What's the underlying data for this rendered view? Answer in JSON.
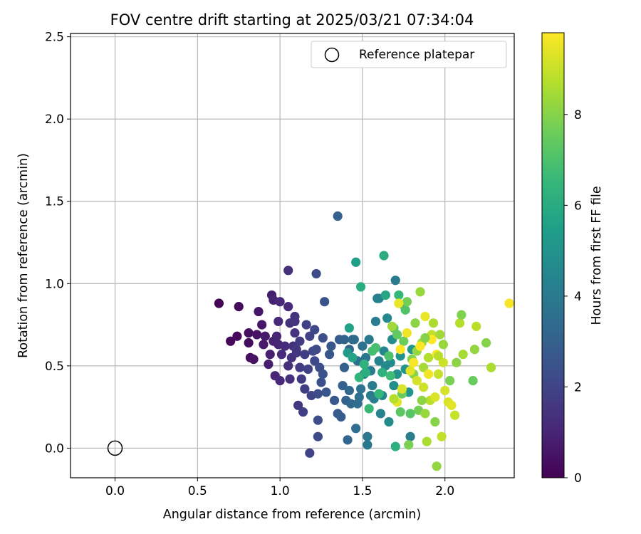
{
  "chart_data": {
    "type": "scatter",
    "title": "FOV centre drift starting at 2025/03/21 07:34:04",
    "xlabel": "Angular distance from reference (arcmin)",
    "ylabel": "Rotation from reference (arcmin)",
    "xlim": [
      -0.27,
      2.42
    ],
    "ylim": [
      -0.18,
      2.52
    ],
    "x_ticks": [
      "0.0",
      "0.5",
      "1.0",
      "1.5",
      "2.0"
    ],
    "x_tick_values": [
      0,
      0.5,
      1.0,
      1.5,
      2.0
    ],
    "y_ticks": [
      "0.0",
      "0.5",
      "1.0",
      "1.5",
      "2.0",
      "2.5"
    ],
    "y_tick_values": [
      0,
      0.5,
      1.0,
      1.5,
      2.0,
      2.5
    ],
    "grid": true,
    "legend": {
      "position": "upper-right",
      "entries": [
        {
          "label": "Reference platepar",
          "marker": "open-circle"
        }
      ]
    },
    "reference": {
      "x": 0.0,
      "y": 0.0
    },
    "colorbar": {
      "label": "Hours from first FF file",
      "min": 0,
      "max": 9.8,
      "ticks": [
        "0",
        "2",
        "4",
        "6",
        "8"
      ],
      "tick_values": [
        0,
        2,
        4,
        6,
        8
      ],
      "colormap": "viridis"
    },
    "points": [
      {
        "x": 0.63,
        "y": 0.88,
        "c": 0.1
      },
      {
        "x": 0.7,
        "y": 0.65,
        "c": 0.2
      },
      {
        "x": 0.74,
        "y": 0.68,
        "c": 0.2
      },
      {
        "x": 0.75,
        "y": 0.86,
        "c": 0.3
      },
      {
        "x": 0.81,
        "y": 0.64,
        "c": 0.3
      },
      {
        "x": 0.81,
        "y": 0.7,
        "c": 0.4
      },
      {
        "x": 0.82,
        "y": 0.55,
        "c": 0.4
      },
      {
        "x": 0.84,
        "y": 0.54,
        "c": 0.5
      },
      {
        "x": 0.86,
        "y": 0.69,
        "c": 0.5
      },
      {
        "x": 0.87,
        "y": 0.83,
        "c": 0.6
      },
      {
        "x": 0.89,
        "y": 0.75,
        "c": 0.6
      },
      {
        "x": 0.9,
        "y": 0.63,
        "c": 0.7
      },
      {
        "x": 0.91,
        "y": 0.68,
        "c": 0.7
      },
      {
        "x": 0.93,
        "y": 0.51,
        "c": 0.8
      },
      {
        "x": 0.94,
        "y": 0.57,
        "c": 0.8
      },
      {
        "x": 0.95,
        "y": 0.93,
        "c": 0.8
      },
      {
        "x": 0.96,
        "y": 0.9,
        "c": 0.9
      },
      {
        "x": 0.96,
        "y": 0.65,
        "c": 0.9
      },
      {
        "x": 0.97,
        "y": 0.44,
        "c": 1.0
      },
      {
        "x": 0.98,
        "y": 0.68,
        "c": 1.0
      },
      {
        "x": 0.99,
        "y": 0.63,
        "c": 1.0
      },
      {
        "x": 0.99,
        "y": 0.77,
        "c": 1.1
      },
      {
        "x": 1.0,
        "y": 0.41,
        "c": 1.1
      },
      {
        "x": 1.0,
        "y": 0.89,
        "c": 1.1
      },
      {
        "x": 1.01,
        "y": 0.57,
        "c": 1.2
      },
      {
        "x": 1.03,
        "y": 0.62,
        "c": 1.2
      },
      {
        "x": 1.05,
        "y": 0.86,
        "c": 1.2
      },
      {
        "x": 1.05,
        "y": 1.08,
        "c": 1.3
      },
      {
        "x": 1.05,
        "y": 0.5,
        "c": 1.3
      },
      {
        "x": 1.06,
        "y": 0.42,
        "c": 1.3
      },
      {
        "x": 1.06,
        "y": 0.76,
        "c": 1.4
      },
      {
        "x": 1.07,
        "y": 0.55,
        "c": 1.4
      },
      {
        "x": 1.08,
        "y": 0.62,
        "c": 1.4
      },
      {
        "x": 1.09,
        "y": 0.8,
        "c": 1.5
      },
      {
        "x": 1.09,
        "y": 0.7,
        "c": 1.5
      },
      {
        "x": 1.09,
        "y": 0.77,
        "c": 1.5
      },
      {
        "x": 1.1,
        "y": 0.58,
        "c": 1.6
      },
      {
        "x": 1.1,
        "y": 0.6,
        "c": 1.6
      },
      {
        "x": 1.11,
        "y": 0.26,
        "c": 1.6
      },
      {
        "x": 1.12,
        "y": 0.49,
        "c": 1.7
      },
      {
        "x": 1.12,
        "y": 0.65,
        "c": 1.7
      },
      {
        "x": 1.13,
        "y": 0.42,
        "c": 1.7
      },
      {
        "x": 1.14,
        "y": 0.22,
        "c": 1.8
      },
      {
        "x": 1.15,
        "y": 0.57,
        "c": 1.8
      },
      {
        "x": 1.15,
        "y": 0.36,
        "c": 1.8
      },
      {
        "x": 1.16,
        "y": 0.75,
        "c": 1.9
      },
      {
        "x": 1.17,
        "y": 0.48,
        "c": 1.9
      },
      {
        "x": 1.18,
        "y": 0.68,
        "c": 2.0
      },
      {
        "x": 1.18,
        "y": -0.03,
        "c": 2.0
      },
      {
        "x": 1.19,
        "y": 0.32,
        "c": 2.0
      },
      {
        "x": 1.2,
        "y": 0.59,
        "c": 2.1
      },
      {
        "x": 1.21,
        "y": 0.53,
        "c": 2.1
      },
      {
        "x": 1.21,
        "y": 0.72,
        "c": 2.1
      },
      {
        "x": 1.22,
        "y": 0.6,
        "c": 2.2
      },
      {
        "x": 1.22,
        "y": 1.06,
        "c": 2.2
      },
      {
        "x": 1.23,
        "y": 0.07,
        "c": 2.2
      },
      {
        "x": 1.23,
        "y": 0.17,
        "c": 2.3
      },
      {
        "x": 1.23,
        "y": 0.33,
        "c": 2.3
      },
      {
        "x": 1.24,
        "y": 0.49,
        "c": 2.3
      },
      {
        "x": 1.25,
        "y": 0.4,
        "c": 2.4
      },
      {
        "x": 1.26,
        "y": 0.67,
        "c": 2.4
      },
      {
        "x": 1.26,
        "y": 0.45,
        "c": 2.5
      },
      {
        "x": 1.27,
        "y": 0.89,
        "c": 2.5
      },
      {
        "x": 1.28,
        "y": 0.34,
        "c": 2.6
      },
      {
        "x": 1.3,
        "y": 0.57,
        "c": 2.6
      },
      {
        "x": 1.31,
        "y": 0.62,
        "c": 2.7
      },
      {
        "x": 1.33,
        "y": 0.29,
        "c": 2.7
      },
      {
        "x": 1.35,
        "y": 1.41,
        "c": 3.0
      },
      {
        "x": 1.35,
        "y": 0.21,
        "c": 2.8
      },
      {
        "x": 1.36,
        "y": 0.66,
        "c": 2.9
      },
      {
        "x": 1.37,
        "y": 0.19,
        "c": 2.9
      },
      {
        "x": 1.38,
        "y": 0.38,
        "c": 3.0
      },
      {
        "x": 1.39,
        "y": 0.49,
        "c": 3.0
      },
      {
        "x": 1.39,
        "y": 0.66,
        "c": 3.1
      },
      {
        "x": 1.4,
        "y": 0.29,
        "c": 3.1
      },
      {
        "x": 1.41,
        "y": 0.05,
        "c": 3.2
      },
      {
        "x": 1.42,
        "y": 0.6,
        "c": 3.2
      },
      {
        "x": 1.42,
        "y": 0.35,
        "c": 3.3
      },
      {
        "x": 1.43,
        "y": 0.27,
        "c": 3.3
      },
      {
        "x": 1.44,
        "y": 0.66,
        "c": 3.4
      },
      {
        "x": 1.45,
        "y": 0.66,
        "c": 3.4
      },
      {
        "x": 1.46,
        "y": 0.12,
        "c": 3.5
      },
      {
        "x": 1.47,
        "y": 0.27,
        "c": 3.5
      },
      {
        "x": 1.47,
        "y": 0.53,
        "c": 3.6
      },
      {
        "x": 1.48,
        "y": 0.31,
        "c": 3.6
      },
      {
        "x": 1.49,
        "y": 0.36,
        "c": 3.7
      },
      {
        "x": 1.5,
        "y": 0.62,
        "c": 3.7
      },
      {
        "x": 1.51,
        "y": 0.45,
        "c": 3.8
      },
      {
        "x": 1.52,
        "y": 0.55,
        "c": 3.8
      },
      {
        "x": 1.53,
        "y": 0.07,
        "c": 3.9
      },
      {
        "x": 1.53,
        "y": 0.02,
        "c": 3.9
      },
      {
        "x": 1.54,
        "y": 0.66,
        "c": 4.0
      },
      {
        "x": 1.55,
        "y": 0.32,
        "c": 4.0
      },
      {
        "x": 1.55,
        "y": 0.47,
        "c": 4.1
      },
      {
        "x": 1.56,
        "y": 0.38,
        "c": 4.1
      },
      {
        "x": 1.57,
        "y": 0.3,
        "c": 4.2
      },
      {
        "x": 1.58,
        "y": 0.77,
        "c": 4.2
      },
      {
        "x": 1.59,
        "y": 0.91,
        "c": 4.3
      },
      {
        "x": 1.6,
        "y": 0.91,
        "c": 4.3
      },
      {
        "x": 1.6,
        "y": 0.53,
        "c": 4.4
      },
      {
        "x": 1.61,
        "y": 0.21,
        "c": 4.4
      },
      {
        "x": 1.62,
        "y": 0.32,
        "c": 4.5
      },
      {
        "x": 1.63,
        "y": 0.59,
        "c": 4.5
      },
      {
        "x": 1.64,
        "y": 0.5,
        "c": 4.6
      },
      {
        "x": 1.65,
        "y": 0.79,
        "c": 4.6
      },
      {
        "x": 1.66,
        "y": 0.16,
        "c": 4.7
      },
      {
        "x": 1.67,
        "y": 0.52,
        "c": 4.7
      },
      {
        "x": 1.68,
        "y": 0.66,
        "c": 4.8
      },
      {
        "x": 1.69,
        "y": 0.38,
        "c": 4.8
      },
      {
        "x": 1.7,
        "y": 1.02,
        "c": 4.0
      },
      {
        "x": 1.71,
        "y": 0.45,
        "c": 4.9
      },
      {
        "x": 1.73,
        "y": 0.56,
        "c": 5.0
      },
      {
        "x": 1.75,
        "y": 0.87,
        "c": 5.0
      },
      {
        "x": 1.76,
        "y": 0.48,
        "c": 5.1
      },
      {
        "x": 1.78,
        "y": 0.34,
        "c": 5.1
      },
      {
        "x": 1.79,
        "y": 0.07,
        "c": 4.2
      },
      {
        "x": 1.8,
        "y": 0.6,
        "c": 5.2
      },
      {
        "x": 1.41,
        "y": 0.58,
        "c": 5.3
      },
      {
        "x": 1.42,
        "y": 0.73,
        "c": 5.6
      },
      {
        "x": 1.44,
        "y": 0.55,
        "c": 5.7
      },
      {
        "x": 1.46,
        "y": 1.13,
        "c": 5.5
      },
      {
        "x": 1.48,
        "y": 0.43,
        "c": 6.4
      },
      {
        "x": 1.49,
        "y": 0.98,
        "c": 6.0
      },
      {
        "x": 1.51,
        "y": 0.51,
        "c": 6.3
      },
      {
        "x": 1.52,
        "y": 0.46,
        "c": 6.1
      },
      {
        "x": 1.54,
        "y": 0.24,
        "c": 6.6
      },
      {
        "x": 1.56,
        "y": 0.59,
        "c": 6.8
      },
      {
        "x": 1.58,
        "y": 0.61,
        "c": 6.9
      },
      {
        "x": 1.6,
        "y": 0.33,
        "c": 6.5
      },
      {
        "x": 1.62,
        "y": 0.46,
        "c": 6.2
      },
      {
        "x": 1.63,
        "y": 1.17,
        "c": 6.0
      },
      {
        "x": 1.64,
        "y": 0.93,
        "c": 5.8
      },
      {
        "x": 1.66,
        "y": 0.56,
        "c": 7.0
      },
      {
        "x": 1.67,
        "y": 0.44,
        "c": 6.7
      },
      {
        "x": 1.69,
        "y": 0.73,
        "c": 7.2
      },
      {
        "x": 1.7,
        "y": 0.01,
        "c": 6.2
      },
      {
        "x": 1.71,
        "y": 0.69,
        "c": 7.4
      },
      {
        "x": 1.72,
        "y": 0.93,
        "c": 6.5
      },
      {
        "x": 1.73,
        "y": 0.22,
        "c": 7.3
      },
      {
        "x": 1.74,
        "y": 0.33,
        "c": 7.5
      },
      {
        "x": 1.75,
        "y": 0.65,
        "c": 7.6
      },
      {
        "x": 1.76,
        "y": 0.84,
        "c": 7.1
      },
      {
        "x": 1.77,
        "y": 0.89,
        "c": 7.7
      },
      {
        "x": 1.78,
        "y": 0.02,
        "c": 7.8
      },
      {
        "x": 1.79,
        "y": 0.21,
        "c": 7.2
      },
      {
        "x": 1.8,
        "y": 0.54,
        "c": 7.9
      },
      {
        "x": 1.81,
        "y": 0.45,
        "c": 8.0
      },
      {
        "x": 1.82,
        "y": 0.76,
        "c": 8.1
      },
      {
        "x": 1.83,
        "y": 0.59,
        "c": 8.2
      },
      {
        "x": 1.84,
        "y": 0.23,
        "c": 7.7
      },
      {
        "x": 1.85,
        "y": 0.95,
        "c": 8.3
      },
      {
        "x": 1.86,
        "y": 0.64,
        "c": 8.4
      },
      {
        "x": 1.87,
        "y": 0.49,
        "c": 8.5
      },
      {
        "x": 1.88,
        "y": 0.21,
        "c": 8.3
      },
      {
        "x": 1.89,
        "y": 0.04,
        "c": 8.6
      },
      {
        "x": 1.9,
        "y": 0.55,
        "c": 8.7
      },
      {
        "x": 1.91,
        "y": 0.29,
        "c": 8.8
      },
      {
        "x": 1.92,
        "y": 0.69,
        "c": 8.9
      },
      {
        "x": 1.93,
        "y": 0.76,
        "c": 8.6
      },
      {
        "x": 1.94,
        "y": 0.16,
        "c": 8.0
      },
      {
        "x": 1.95,
        "y": -0.11,
        "c": 8.2
      },
      {
        "x": 1.96,
        "y": 0.45,
        "c": 9.0
      },
      {
        "x": 1.97,
        "y": 0.69,
        "c": 8.4
      },
      {
        "x": 1.98,
        "y": 0.07,
        "c": 8.9
      },
      {
        "x": 1.99,
        "y": 0.52,
        "c": 9.1
      },
      {
        "x": 2.0,
        "y": 0.35,
        "c": 9.2
      },
      {
        "x": 2.02,
        "y": 0.28,
        "c": 9.3
      },
      {
        "x": 2.03,
        "y": 0.41,
        "c": 7.8
      },
      {
        "x": 2.04,
        "y": 0.26,
        "c": 9.4
      },
      {
        "x": 2.06,
        "y": 0.2,
        "c": 9.0
      },
      {
        "x": 2.07,
        "y": 0.52,
        "c": 8.1
      },
      {
        "x": 2.09,
        "y": 0.76,
        "c": 8.7
      },
      {
        "x": 2.1,
        "y": 0.81,
        "c": 7.9
      },
      {
        "x": 2.11,
        "y": 0.57,
        "c": 8.5
      },
      {
        "x": 2.17,
        "y": 0.41,
        "c": 7.5
      },
      {
        "x": 2.18,
        "y": 0.6,
        "c": 8.2
      },
      {
        "x": 2.19,
        "y": 0.74,
        "c": 8.8
      },
      {
        "x": 2.25,
        "y": 0.64,
        "c": 8.0
      },
      {
        "x": 2.28,
        "y": 0.49,
        "c": 8.6
      },
      {
        "x": 2.39,
        "y": 0.88,
        "c": 9.7
      },
      {
        "x": 1.72,
        "y": 0.88,
        "c": 9.5
      },
      {
        "x": 1.74,
        "y": 0.36,
        "c": 9.3
      },
      {
        "x": 1.77,
        "y": 0.7,
        "c": 9.6
      },
      {
        "x": 1.79,
        "y": 0.47,
        "c": 9.4
      },
      {
        "x": 1.81,
        "y": 0.52,
        "c": 9.7
      },
      {
        "x": 1.83,
        "y": 0.41,
        "c": 9.2
      },
      {
        "x": 1.85,
        "y": 0.62,
        "c": 9.8
      },
      {
        "x": 1.87,
        "y": 0.37,
        "c": 9.1
      },
      {
        "x": 1.88,
        "y": 0.8,
        "c": 9.5
      },
      {
        "x": 1.9,
        "y": 0.45,
        "c": 9.6
      },
      {
        "x": 1.92,
        "y": 0.66,
        "c": 9.8
      },
      {
        "x": 1.94,
        "y": 0.31,
        "c": 9.3
      },
      {
        "x": 1.95,
        "y": 0.57,
        "c": 9.7
      },
      {
        "x": 1.71,
        "y": 0.28,
        "c": 9.4
      },
      {
        "x": 1.73,
        "y": 0.6,
        "c": 9.9
      },
      {
        "x": 1.68,
        "y": 0.74,
        "c": 8.4
      },
      {
        "x": 1.69,
        "y": 0.3,
        "c": 8.7
      },
      {
        "x": 1.86,
        "y": 0.29,
        "c": 8.1
      },
      {
        "x": 1.99,
        "y": 0.63,
        "c": 8.3
      },
      {
        "x": 1.88,
        "y": 0.67,
        "c": 8.0
      },
      {
        "x": 1.96,
        "y": 0.56,
        "c": 8.8
      }
    ]
  }
}
